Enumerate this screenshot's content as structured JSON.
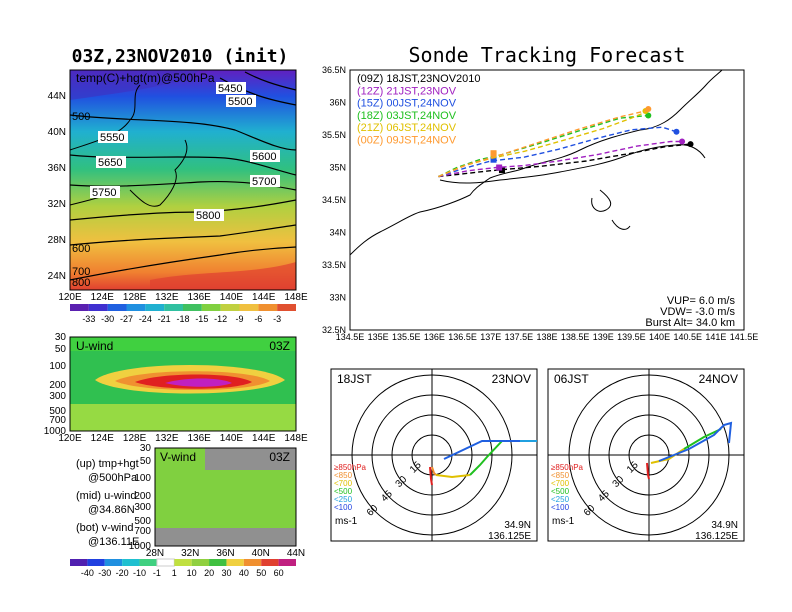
{
  "titles": {
    "left_title": "03Z,23NOV2010 (init)",
    "right_title": "Sonde Tracking Forecast"
  },
  "colors": {
    "track_09z": "#000000",
    "track_12z": "#a020c0",
    "track_15z": "#2050e0",
    "track_18z": "#20c020",
    "track_21z": "#e0c000",
    "track_00z": "#ff9a30"
  },
  "chart_data": [
    {
      "type": "heatmap",
      "panel": "upper-left",
      "annotation": "temp(C)+hgt(m)@500hPa",
      "x_ticks": [
        "120E",
        "124E",
        "128E",
        "132E",
        "136E",
        "140E",
        "144E",
        "148E"
      ],
      "y_ticks": [
        "24N",
        "28N",
        "32N",
        "36N",
        "40N",
        "44N"
      ],
      "contour_labels": [
        "5450",
        "5500",
        "5550",
        "5600",
        "5650",
        "5700",
        "5750",
        "5800"
      ],
      "left_edge_labels": [
        "500",
        "600",
        "700",
        "800"
      ],
      "colorbar_ticks": [
        "-33",
        "-30",
        "-27",
        "-24",
        "-21",
        "-18",
        "-15",
        "-12",
        "-9",
        "-6",
        "-3"
      ]
    },
    {
      "type": "heatmap",
      "panel": "middle-left",
      "title": "U-wind",
      "time": "03Z",
      "y_ticks": [
        "30",
        "50",
        "100",
        "200",
        "300",
        "500",
        "700",
        "1000"
      ],
      "x_ticks": [
        "120E",
        "124E",
        "128E",
        "132E",
        "136E",
        "140E",
        "144E",
        "148E"
      ]
    },
    {
      "type": "heatmap",
      "panel": "lower-left",
      "title": "V-wind",
      "time": "03Z",
      "y_ticks": [
        "30",
        "50",
        "100",
        "200",
        "300",
        "500",
        "700",
        "1000"
      ],
      "x_ticks": [
        "28N",
        "32N",
        "36N",
        "40N",
        "44N"
      ],
      "colorbar_ticks": [
        "-40",
        "-30",
        "-20",
        "-10",
        "-1",
        "1",
        "10",
        "20",
        "30",
        "40",
        "50",
        "60"
      ]
    },
    {
      "type": "line",
      "panel": "track-map",
      "x_ticks": [
        "134.5E",
        "135E",
        "135.5E",
        "136E",
        "136.5E",
        "137E",
        "137.5E",
        "138E",
        "138.5E",
        "139E",
        "139.5E",
        "140E",
        "140.5E",
        "141E",
        "141.5E"
      ],
      "y_ticks": [
        "36.5N",
        "36N",
        "35.5N",
        "35N",
        "34.5N",
        "34N",
        "33.5N",
        "33N",
        "32.5N"
      ],
      "xlim": [
        134.5,
        141.5
      ],
      "ylim": [
        32.5,
        36.5
      ],
      "series": [
        {
          "name": "(09Z) 18JST,23NOV2010",
          "color_key": "track_09z",
          "dash": true,
          "x": [
            136.07,
            137.0,
            137.9,
            138.7,
            139.5,
            140.1,
            140.55
          ],
          "y": [
            34.86,
            34.95,
            35.02,
            35.1,
            35.22,
            35.32,
            35.36
          ],
          "markers": [
            {
              "lon": 137.2,
              "lat": 34.96
            },
            {
              "lon": 140.55,
              "lat": 35.36
            }
          ]
        },
        {
          "name": "(12Z) 21JST,23NOV",
          "color_key": "track_12z",
          "dash": true,
          "x": [
            136.07,
            136.6,
            137.1,
            137.6,
            138.2,
            138.9,
            139.6,
            140.2,
            140.45
          ],
          "y": [
            34.86,
            34.95,
            35.0,
            35.03,
            35.1,
            35.2,
            35.33,
            35.4,
            35.4
          ],
          "markers": [
            {
              "lon": 137.15,
              "lat": 35.0
            },
            {
              "lon": 140.4,
              "lat": 35.4
            }
          ]
        },
        {
          "name": "(15Z) 00JST,24NOV",
          "color_key": "track_15z",
          "dash": true,
          "x": [
            136.07,
            136.5,
            137.0,
            137.6,
            138.2,
            138.9,
            139.5,
            140.05,
            140.3
          ],
          "y": [
            34.86,
            34.98,
            35.1,
            35.16,
            35.28,
            35.45,
            35.58,
            35.62,
            35.55
          ],
          "markers": [
            {
              "lon": 137.05,
              "lat": 35.12
            },
            {
              "lon": 140.3,
              "lat": 35.55
            }
          ]
        },
        {
          "name": "(18Z) 03JST,24NOV",
          "color_key": "track_18z",
          "dash": true,
          "x": [
            136.07,
            136.4,
            136.8,
            137.2,
            137.9,
            138.7,
            139.3,
            139.8
          ],
          "y": [
            34.86,
            35.0,
            35.12,
            35.2,
            35.38,
            35.6,
            35.76,
            35.8
          ],
          "markers": [
            {
              "lon": 137.05,
              "lat": 35.2
            },
            {
              "lon": 139.8,
              "lat": 35.8
            }
          ]
        },
        {
          "name": "(21Z) 06JST,24NOV",
          "color_key": "track_21z",
          "dash": true,
          "x": [
            136.07,
            136.5,
            137.0,
            137.6,
            138.3,
            139.0,
            139.5,
            139.75
          ],
          "y": [
            34.86,
            35.02,
            35.14,
            35.25,
            35.42,
            35.6,
            35.76,
            35.85
          ],
          "markers": [
            {
              "lon": 137.05,
              "lat": 35.21
            },
            {
              "lon": 139.75,
              "lat": 35.87
            }
          ]
        },
        {
          "name": "(00Z) 09JST,24NOV",
          "color_key": "track_00z",
          "dash": true,
          "x": [
            136.07,
            136.6,
            137.2,
            137.9,
            138.6,
            139.3,
            139.8
          ],
          "y": [
            34.86,
            35.05,
            35.2,
            35.4,
            35.6,
            35.78,
            35.88
          ],
          "markers": [
            {
              "lon": 137.05,
              "lat": 35.22
            },
            {
              "lon": 139.8,
              "lat": 35.9
            }
          ]
        }
      ],
      "annotations": [
        "VUP= 6.0 m/s",
        "VDW= -3.0 m/s",
        "Burst Alt= 34.0 km"
      ]
    },
    {
      "type": "scatter",
      "panel": "hodograph-18jst",
      "left_label": "18JST",
      "right_label": "23NOV",
      "ring_labels": [
        "15",
        "30",
        "45",
        "60"
      ],
      "legend": [
        "≥850hPa",
        "<850",
        "<700",
        "<500",
        "<250",
        "<100"
      ],
      "unit": "ms-1",
      "location": [
        "34.9N",
        "136.125E"
      ]
    },
    {
      "type": "scatter",
      "panel": "hodograph-06jst",
      "left_label": "06JST",
      "right_label": "24NOV",
      "ring_labels": [
        "15",
        "30",
        "45",
        "60"
      ],
      "legend": [
        "≥850hPa",
        "<850",
        "<700",
        "<500",
        "<250",
        "<100"
      ],
      "unit": "ms-1",
      "location": [
        "34.9N",
        "136.125E"
      ]
    }
  ],
  "sidebar_notes": {
    "up_label": "(up) tmp+hgt",
    "up_level": "@500hPa",
    "mid_label": "(mid) u-wind",
    "mid_level": "@34.86N",
    "bot_label": "(bot) v-wind",
    "bot_level": "@136.11E"
  }
}
